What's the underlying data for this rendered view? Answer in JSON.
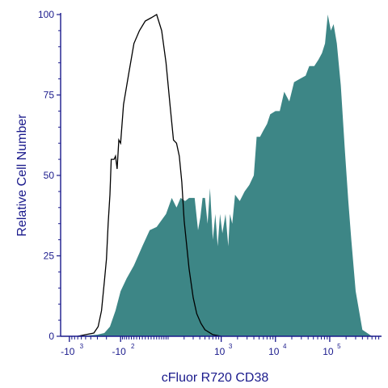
{
  "chart_data": {
    "type": "area",
    "xlabel": "cFluor R720 CD38",
    "ylabel": "Relative Cell Number",
    "x_scale": "biexponential",
    "ylim": [
      0,
      100
    ],
    "y_ticks": [
      "0",
      "25",
      "50",
      "75",
      "100"
    ],
    "x_ticks": [
      {
        "base": "-10",
        "exp": "3",
        "value": -1000
      },
      {
        "base": "-10",
        "exp": "2",
        "value": -100
      },
      {
        "base": "10",
        "exp": "3",
        "value": 1000
      },
      {
        "base": "10",
        "exp": "4",
        "value": 10000
      },
      {
        "base": "10",
        "exp": "5",
        "value": 100000
      }
    ],
    "colors": {
      "stained_fill": "#3d8686",
      "control_line": "#000000",
      "axis": "#1a1a8c"
    },
    "series": [
      {
        "style": "filled",
        "points": [
          [
            -700,
            0
          ],
          [
            -300,
            0.5
          ],
          [
            -220,
            1
          ],
          [
            -170,
            3
          ],
          [
            -130,
            8
          ],
          [
            -100,
            14
          ],
          [
            -70,
            18
          ],
          [
            -40,
            22
          ],
          [
            -10,
            28
          ],
          [
            15,
            33
          ],
          [
            40,
            34
          ],
          [
            80,
            38
          ],
          [
            110,
            43
          ],
          [
            140,
            40
          ],
          [
            170,
            43
          ],
          [
            210,
            42
          ],
          [
            250,
            43
          ],
          [
            320,
            43
          ],
          [
            370,
            33
          ],
          [
            410,
            37
          ],
          [
            450,
            43
          ],
          [
            500,
            43
          ],
          [
            560,
            35
          ],
          [
            620,
            46
          ],
          [
            700,
            30
          ],
          [
            780,
            38
          ],
          [
            860,
            28
          ],
          [
            950,
            38
          ],
          [
            1050,
            32
          ],
          [
            1200,
            38
          ],
          [
            1350,
            28
          ],
          [
            1450,
            38
          ],
          [
            1600,
            35
          ],
          [
            1800,
            44
          ],
          [
            2200,
            42
          ],
          [
            2700,
            45
          ],
          [
            3300,
            47
          ],
          [
            4000,
            50
          ],
          [
            4500,
            62
          ],
          [
            5200,
            62
          ],
          [
            6000,
            64
          ],
          [
            7000,
            66
          ],
          [
            8000,
            69
          ],
          [
            10000,
            70
          ],
          [
            12000,
            70
          ],
          [
            14500,
            76
          ],
          [
            18000,
            73
          ],
          [
            22000,
            79
          ],
          [
            28000,
            80
          ],
          [
            36000,
            81
          ],
          [
            42000,
            84
          ],
          [
            52000,
            84
          ],
          [
            62000,
            86
          ],
          [
            72000,
            88
          ],
          [
            82000,
            91
          ],
          [
            92000,
            100
          ],
          [
            105000,
            95
          ],
          [
            118000,
            97
          ],
          [
            135000,
            91
          ],
          [
            160000,
            78
          ],
          [
            190000,
            58
          ],
          [
            220000,
            42
          ],
          [
            250000,
            30
          ],
          [
            300000,
            14
          ],
          [
            400000,
            2
          ],
          [
            600000,
            0
          ]
        ]
      },
      {
        "style": "outline",
        "points": [
          [
            -700,
            0
          ],
          [
            -500,
            0.5
          ],
          [
            -350,
            1
          ],
          [
            -290,
            3
          ],
          [
            -250,
            8
          ],
          [
            -220,
            17
          ],
          [
            -200,
            24
          ],
          [
            -185,
            35
          ],
          [
            -170,
            44
          ],
          [
            -160,
            55
          ],
          [
            -140,
            55
          ],
          [
            -130,
            56
          ],
          [
            -120,
            52
          ],
          [
            -110,
            61
          ],
          [
            -100,
            60
          ],
          [
            -85,
            72
          ],
          [
            -60,
            82
          ],
          [
            -40,
            91
          ],
          [
            -20,
            95
          ],
          [
            0,
            98
          ],
          [
            20,
            99
          ],
          [
            40,
            100
          ],
          [
            60,
            95
          ],
          [
            80,
            85
          ],
          [
            100,
            72
          ],
          [
            120,
            61
          ],
          [
            140,
            60
          ],
          [
            160,
            56
          ],
          [
            180,
            48
          ],
          [
            200,
            36
          ],
          [
            250,
            21
          ],
          [
            300,
            12
          ],
          [
            350,
            7
          ],
          [
            420,
            4
          ],
          [
            500,
            2
          ],
          [
            700,
            0.5
          ],
          [
            1000,
            0
          ]
        ]
      }
    ]
  }
}
